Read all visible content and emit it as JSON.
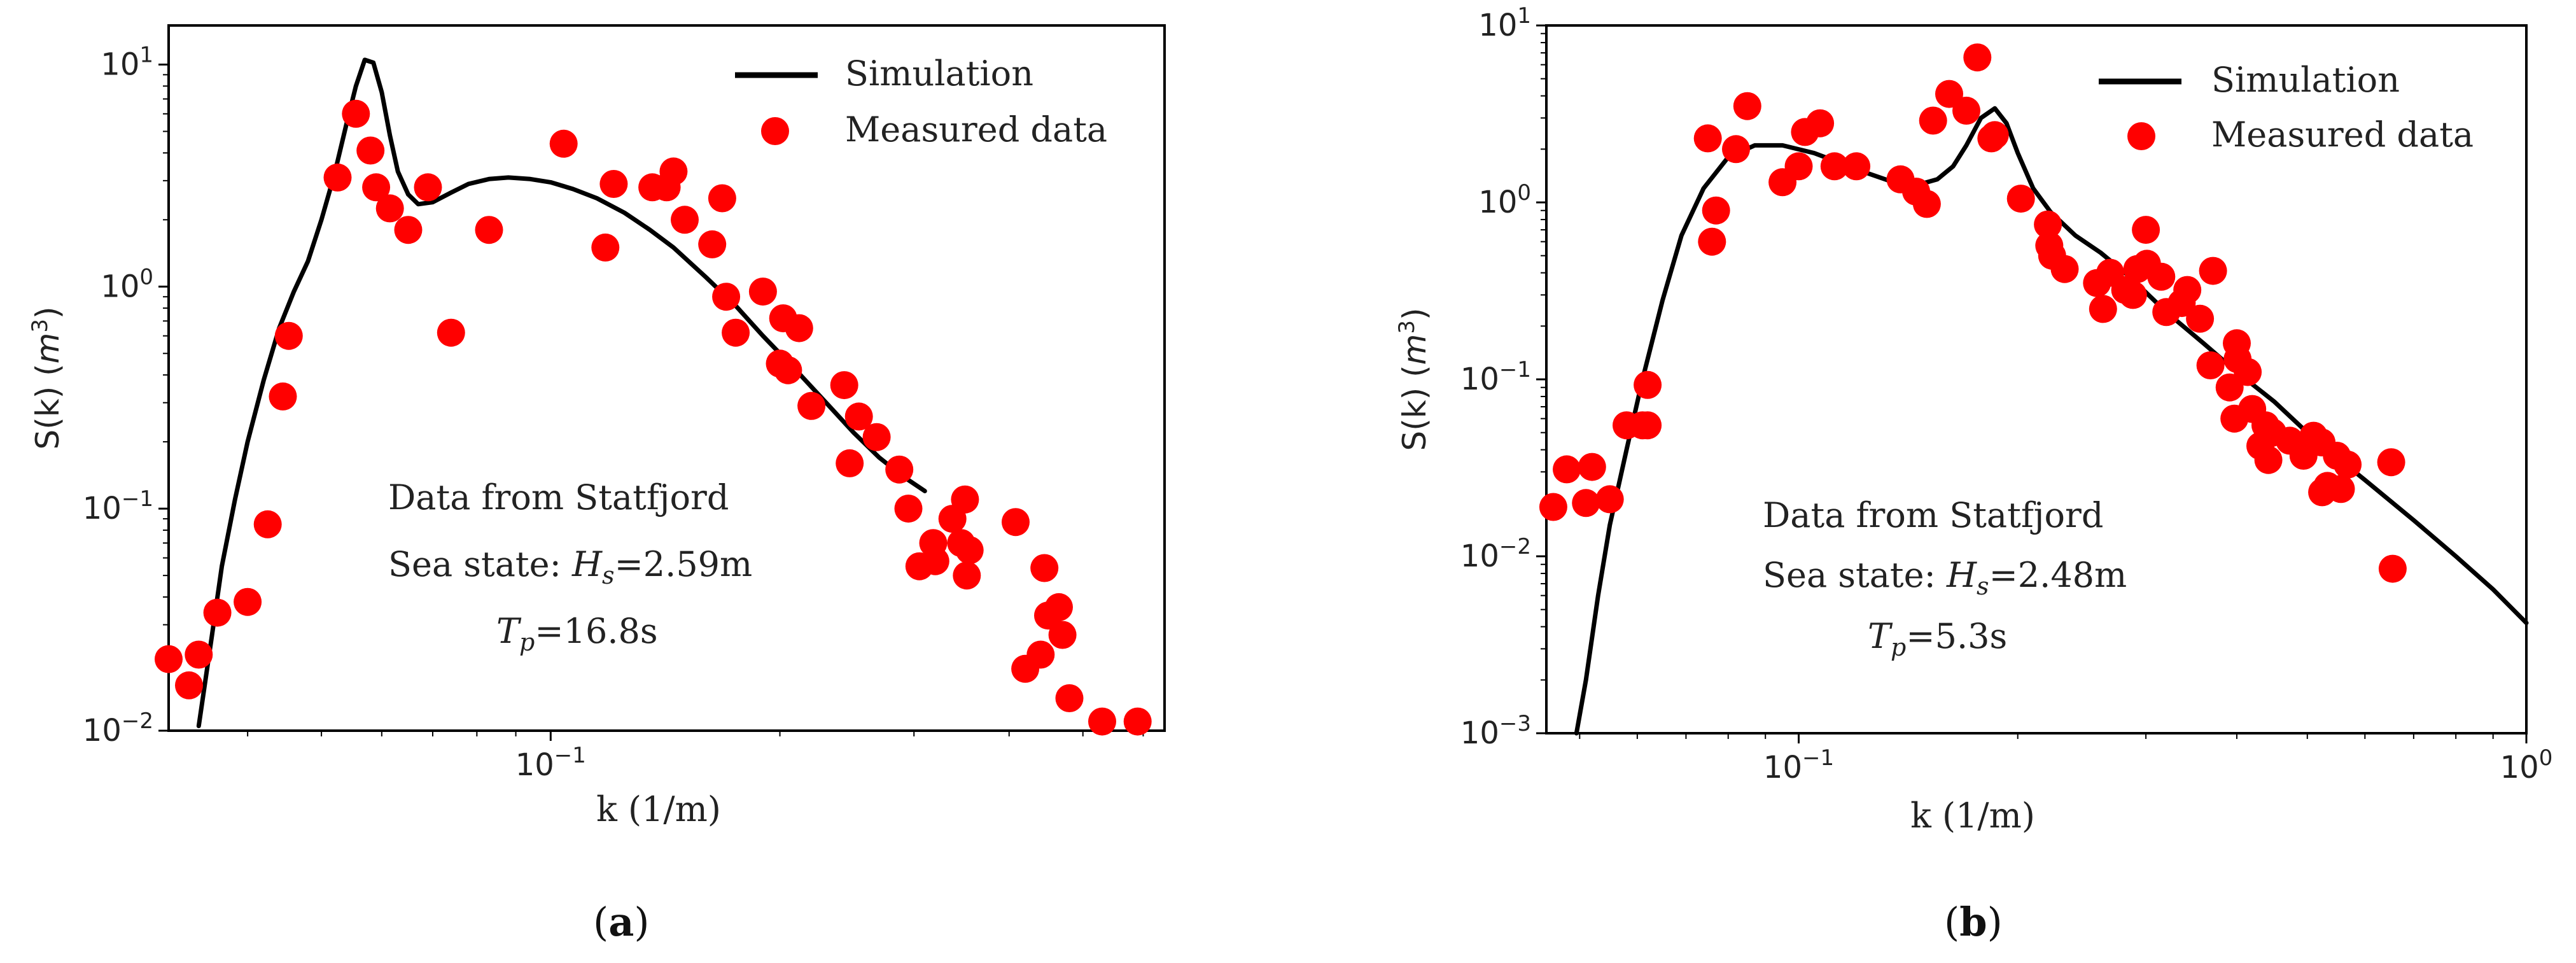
{
  "chart_data": [
    {
      "panel_label": "a",
      "type": "scatter",
      "xscale": "log",
      "yscale": "log",
      "xlim": [
        0.0315,
        0.64
      ],
      "ylim": [
        0.01,
        15
      ],
      "xlabel": "k (1/m)",
      "ylabel": "S(k) (m³)",
      "xtick_labels": [
        {
          "value": 0.1,
          "mant": "10",
          "exp": "−1"
        }
      ],
      "ytick_labels": [
        {
          "value": 0.01,
          "mant": "10",
          "exp": "−2"
        },
        {
          "value": 0.1,
          "mant": "10",
          "exp": "−1"
        },
        {
          "value": 1,
          "mant": "10",
          "exp": "0"
        },
        {
          "value": 10,
          "mant": "10",
          "exp": "1"
        }
      ],
      "legend": {
        "position": "top-right",
        "line_label": "Simulation",
        "marker_label": "Measured data"
      },
      "annotations": {
        "line1": "Data from Statfjord",
        "prefix": "Sea state:",
        "hs_value": "=2.59m",
        "tp_value": "=16.8s"
      },
      "colors": {
        "line": "#000000",
        "marker": "#ff0000",
        "frame": "#000000"
      },
      "series": [
        {
          "name": "Simulation",
          "kind": "line",
          "x": [
            0.0345,
            0.0358,
            0.037,
            0.0385,
            0.04,
            0.042,
            0.044,
            0.046,
            0.048,
            0.05,
            0.052,
            0.054,
            0.0555,
            0.057,
            0.0585,
            0.06,
            0.0615,
            0.063,
            0.065,
            0.067,
            0.07,
            0.074,
            0.078,
            0.083,
            0.088,
            0.094,
            0.1,
            0.107,
            0.115,
            0.125,
            0.135,
            0.145,
            0.16,
            0.175,
            0.19,
            0.21,
            0.23,
            0.25,
            0.27,
            0.29,
            0.31
          ],
          "y": [
            0.0105,
            0.025,
            0.055,
            0.11,
            0.2,
            0.38,
            0.65,
            0.95,
            1.3,
            2.0,
            3.2,
            5.5,
            8.0,
            10.5,
            10.2,
            7.5,
            4.8,
            3.3,
            2.6,
            2.35,
            2.4,
            2.65,
            2.9,
            3.05,
            3.1,
            3.05,
            2.95,
            2.75,
            2.5,
            2.15,
            1.8,
            1.5,
            1.1,
            0.82,
            0.6,
            0.42,
            0.3,
            0.22,
            0.17,
            0.14,
            0.12
          ]
        },
        {
          "name": "Measured data",
          "kind": "scatter",
          "x": [
            0.0315,
            0.0335,
            0.0345,
            0.0365,
            0.04,
            0.0425,
            0.0445,
            0.0453,
            0.0525,
            0.0555,
            0.058,
            0.059,
            0.0615,
            0.065,
            0.069,
            0.074,
            0.083,
            0.104,
            0.118,
            0.121,
            0.136,
            0.142,
            0.145,
            0.15,
            0.163,
            0.168,
            0.17,
            0.175,
            0.19,
            0.2,
            0.202,
            0.205,
            0.212,
            0.22,
            0.243,
            0.247,
            0.254,
            0.268,
            0.287,
            0.295,
            0.305,
            0.318,
            0.32,
            0.337,
            0.346,
            0.35,
            0.352,
            0.355,
            0.408,
            0.42,
            0.44,
            0.445,
            0.45,
            0.465,
            0.47,
            0.48,
            0.53,
            0.59
          ],
          "y": [
            0.021,
            0.016,
            0.022,
            0.034,
            0.038,
            0.085,
            0.32,
            0.6,
            3.1,
            6.0,
            4.1,
            2.8,
            2.25,
            1.8,
            2.8,
            0.62,
            1.8,
            4.4,
            1.5,
            2.9,
            2.8,
            2.8,
            3.3,
            2.0,
            1.55,
            2.5,
            0.9,
            0.62,
            0.95,
            0.45,
            0.72,
            0.42,
            0.65,
            0.29,
            0.36,
            0.16,
            0.26,
            0.21,
            0.15,
            0.1,
            0.055,
            0.07,
            0.058,
            0.09,
            0.07,
            0.11,
            0.05,
            0.065,
            0.087,
            0.019,
            0.022,
            0.054,
            0.033,
            0.036,
            0.027,
            0.014,
            0.011,
            0.011
          ]
        }
      ]
    },
    {
      "panel_label": "b",
      "type": "scatter",
      "xscale": "log",
      "yscale": "log",
      "xlim": [
        0.045,
        1.0
      ],
      "ylim": [
        0.001,
        10
      ],
      "xlabel": "k (1/m)",
      "ylabel": "S(k) (m³)",
      "xtick_labels": [
        {
          "value": 0.1,
          "mant": "10",
          "exp": "−1"
        },
        {
          "value": 1,
          "mant": "10",
          "exp": "0"
        }
      ],
      "ytick_labels": [
        {
          "value": 0.001,
          "mant": "10",
          "exp": "−3"
        },
        {
          "value": 0.01,
          "mant": "10",
          "exp": "−2"
        },
        {
          "value": 0.1,
          "mant": "10",
          "exp": "−1"
        },
        {
          "value": 1,
          "mant": "10",
          "exp": "0"
        },
        {
          "value": 10,
          "mant": "10",
          "exp": "1"
        }
      ],
      "legend": {
        "position": "top-right",
        "line_label": "Simulation",
        "marker_label": "Measured data"
      },
      "annotations": {
        "line1": "Data from Statfjord",
        "prefix": "Sea state:",
        "hs_value": "=2.48m",
        "tp_value": "=5.3s"
      },
      "colors": {
        "line": "#000000",
        "marker": "#ff0000",
        "frame": "#000000"
      },
      "series": [
        {
          "name": "Simulation",
          "kind": "line",
          "x": [
            0.0495,
            0.051,
            0.053,
            0.055,
            0.058,
            0.061,
            0.065,
            0.069,
            0.074,
            0.08,
            0.087,
            0.095,
            0.105,
            0.115,
            0.125,
            0.135,
            0.145,
            0.155,
            0.163,
            0.17,
            0.178,
            0.186,
            0.193,
            0.2,
            0.21,
            0.222,
            0.24,
            0.26,
            0.285,
            0.32,
            0.36,
            0.4,
            0.45,
            0.5,
            0.55,
            0.6,
            0.7,
            0.8,
            0.9,
            1.0
          ],
          "y": [
            0.001,
            0.002,
            0.006,
            0.015,
            0.04,
            0.1,
            0.28,
            0.65,
            1.2,
            1.8,
            2.1,
            2.1,
            1.9,
            1.65,
            1.45,
            1.3,
            1.25,
            1.35,
            1.6,
            2.1,
            3.0,
            3.4,
            2.8,
            1.9,
            1.2,
            0.88,
            0.65,
            0.52,
            0.38,
            0.24,
            0.16,
            0.11,
            0.075,
            0.05,
            0.036,
            0.027,
            0.016,
            0.01,
            0.0065,
            0.0042
          ]
        },
        {
          "name": "Measured data",
          "kind": "scatter",
          "x": [
            0.046,
            0.048,
            0.051,
            0.052,
            0.055,
            0.058,
            0.061,
            0.062,
            0.062,
            0.075,
            0.076,
            0.077,
            0.082,
            0.085,
            0.095,
            0.1,
            0.102,
            0.107,
            0.112,
            0.12,
            0.138,
            0.145,
            0.15,
            0.153,
            0.161,
            0.17,
            0.176,
            0.184,
            0.186,
            0.202,
            0.22,
            0.221,
            0.223,
            0.232,
            0.257,
            0.262,
            0.268,
            0.281,
            0.288,
            0.292,
            0.3,
            0.301,
            0.315,
            0.32,
            0.336,
            0.342,
            0.356,
            0.368,
            0.371,
            0.391,
            0.397,
            0.4,
            0.401,
            0.414,
            0.42,
            0.431,
            0.438,
            0.442,
            0.448,
            0.473,
            0.494,
            0.51,
            0.523,
            0.524,
            0.533,
            0.549,
            0.556,
            0.568,
            0.652,
            0.655
          ],
          "y": [
            0.019,
            0.031,
            0.02,
            0.032,
            0.021,
            0.055,
            0.055,
            0.093,
            0.055,
            2.3,
            0.6,
            0.9,
            2.0,
            3.5,
            1.3,
            1.6,
            2.5,
            2.8,
            1.6,
            1.6,
            1.35,
            1.15,
            0.98,
            2.9,
            4.1,
            3.3,
            6.6,
            2.3,
            2.4,
            1.05,
            0.75,
            0.57,
            0.5,
            0.42,
            0.35,
            0.25,
            0.4,
            0.32,
            0.3,
            0.42,
            0.7,
            0.45,
            0.38,
            0.24,
            0.27,
            0.32,
            0.22,
            0.12,
            0.41,
            0.09,
            0.06,
            0.16,
            0.13,
            0.11,
            0.068,
            0.042,
            0.055,
            0.035,
            0.05,
            0.045,
            0.037,
            0.048,
            0.044,
            0.023,
            0.025,
            0.037,
            0.024,
            0.033,
            0.034,
            0.0085
          ]
        }
      ]
    }
  ]
}
